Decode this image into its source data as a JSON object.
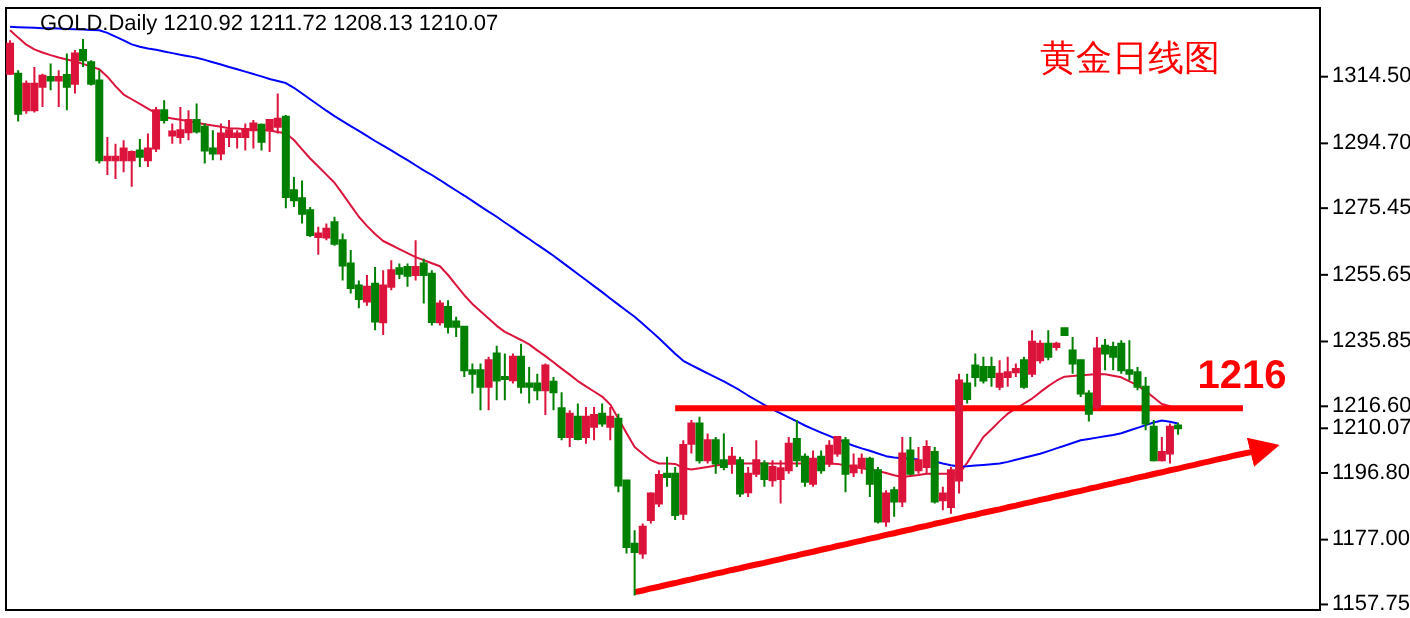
{
  "chart_data": {
    "type": "candlestick",
    "title": "GOLD.Daily 1210.92 1211.72 1208.13 1210.07",
    "subtitle": "黄金日线图",
    "categories": [
      null,
      null,
      null,
      null,
      null,
      null,
      null,
      null,
      null,
      null,
      null,
      null,
      null,
      null,
      null,
      null,
      null,
      null,
      null,
      null,
      null,
      null,
      null,
      null,
      null,
      null,
      null,
      null,
      null,
      null,
      null,
      null,
      null,
      null,
      null,
      null,
      null,
      null,
      null,
      null,
      null,
      null,
      null,
      null,
      null,
      null,
      null,
      null,
      null,
      null,
      null,
      null,
      null,
      null,
      null,
      null,
      null,
      null,
      null,
      null,
      null,
      null,
      null,
      null,
      null,
      null,
      null,
      null,
      null,
      null,
      null,
      null,
      null,
      null,
      null,
      null,
      null,
      null,
      null,
      null,
      null,
      null,
      null,
      null,
      null,
      null,
      null,
      null,
      null,
      null,
      null,
      null,
      null,
      null,
      null,
      null,
      null,
      null,
      null,
      null,
      null,
      null,
      null,
      null,
      null,
      null,
      null,
      null,
      null,
      null,
      null,
      null,
      null,
      null,
      null,
      null,
      null,
      null,
      null,
      null,
      null,
      null,
      null,
      null,
      null,
      null,
      null,
      null,
      null,
      null,
      null,
      null,
      null,
      null,
      null,
      null,
      null,
      null,
      null,
      null,
      null,
      null,
      null,
      null,
      null,
      null,
      null,
      null,
      null,
      null,
      null,
      null,
      null,
      null,
      null,
      null,
      null,
      null,
      null,
      null,
      null,
      null
    ],
    "ohlc": [
      [
        1315.4,
        1325.3,
        1315.0,
        1324.3
      ],
      [
        1315.4,
        1316.4,
        1301.2,
        1303.5
      ],
      [
        1304.5,
        1313.4,
        1303.5,
        1312.4
      ],
      [
        1304.5,
        1317.4,
        1303.9,
        1312.4
      ],
      [
        1311.5,
        1315.4,
        1305.5,
        1314.8
      ],
      [
        1314.4,
        1318.4,
        1310.5,
        1313.4
      ],
      [
        1313.4,
        1316.4,
        1305.5,
        1314.4
      ],
      [
        1315.0,
        1321.4,
        1304.5,
        1311.5
      ],
      [
        1312.4,
        1322.4,
        1309.5,
        1321.4
      ],
      [
        1322.4,
        1325.7,
        1317.4,
        1319.4
      ],
      [
        1318.8,
        1319.4,
        1311.9,
        1312.4
      ],
      [
        1313.4,
        1316.4,
        1288.7,
        1289.7
      ],
      [
        1289.7,
        1296.6,
        1285.3,
        1290.7
      ],
      [
        1289.7,
        1294.6,
        1284.1,
        1290.7
      ],
      [
        1289.7,
        1295.6,
        1286.1,
        1293.2
      ],
      [
        1289.7,
        1292.6,
        1281.8,
        1292.1
      ],
      [
        1292.6,
        1296.0,
        1287.7,
        1290.7
      ],
      [
        1289.7,
        1297.6,
        1287.7,
        1293.2
      ],
      [
        1293.2,
        1305.5,
        1292.1,
        1304.5
      ],
      [
        1304.5,
        1307.5,
        1300.6,
        1301.6
      ],
      [
        1297.0,
        1300.6,
        1294.6,
        1298.2
      ],
      [
        1296.6,
        1305.5,
        1294.6,
        1298.6
      ],
      [
        1298.0,
        1304.5,
        1295.6,
        1301.6
      ],
      [
        1301.6,
        1306.5,
        1297.6,
        1298.2
      ],
      [
        1299.6,
        1300.6,
        1288.7,
        1292.6
      ],
      [
        1293.2,
        1298.6,
        1289.7,
        1291.7
      ],
      [
        1291.7,
        1300.6,
        1289.7,
        1297.6
      ],
      [
        1296.6,
        1301.6,
        1293.6,
        1298.6
      ],
      [
        1296.6,
        1298.6,
        1293.2,
        1297.6
      ],
      [
        1296.6,
        1300.6,
        1292.6,
        1299.0
      ],
      [
        1298.6,
        1301.6,
        1293.2,
        1300.6
      ],
      [
        1300.2,
        1300.6,
        1292.6,
        1295.2
      ],
      [
        1298.6,
        1301.6,
        1292.1,
        1301.6
      ],
      [
        1299.6,
        1309.5,
        1297.6,
        1302.0
      ],
      [
        1302.6,
        1303.1,
        1275.4,
        1278.8
      ],
      [
        1280.8,
        1284.7,
        1275.8,
        1277.8
      ],
      [
        1278.4,
        1283.7,
        1270.9,
        1273.8
      ],
      [
        1274.8,
        1275.8,
        1266.9,
        1267.5
      ],
      [
        1266.9,
        1269.9,
        1261.6,
        1267.9
      ],
      [
        1266.7,
        1270.9,
        1265.9,
        1269.3
      ],
      [
        1271.3,
        1272.9,
        1264.3,
        1264.9
      ],
      [
        1265.9,
        1267.9,
        1254.0,
        1258.4
      ],
      [
        1259.0,
        1263.0,
        1250.1,
        1251.7
      ],
      [
        1252.5,
        1254.0,
        1245.7,
        1248.5
      ],
      [
        1247.7,
        1255.6,
        1246.5,
        1252.1
      ],
      [
        1253.0,
        1258.0,
        1239.2,
        1241.8
      ],
      [
        1241.6,
        1257.0,
        1237.8,
        1252.5
      ],
      [
        1252.1,
        1260.0,
        1251.1,
        1257.0
      ],
      [
        1257.6,
        1259.0,
        1254.4,
        1256.0
      ],
      [
        1258.0,
        1259.0,
        1252.1,
        1255.4
      ],
      [
        1255.6,
        1265.9,
        1254.0,
        1258.0
      ],
      [
        1259.0,
        1260.4,
        1247.1,
        1255.6
      ],
      [
        1256.0,
        1257.0,
        1240.6,
        1241.6
      ],
      [
        1241.6,
        1248.1,
        1240.6,
        1247.1
      ],
      [
        1246.1,
        1248.1,
        1238.2,
        1240.2
      ],
      [
        1241.8,
        1243.2,
        1237.2,
        1240.2
      ],
      [
        1240.2,
        1240.2,
        1225.3,
        1227.3
      ],
      [
        1227.3,
        1229.3,
        1220.4,
        1226.3
      ],
      [
        1227.3,
        1229.3,
        1215.4,
        1222.4
      ],
      [
        1222.4,
        1231.3,
        1215.4,
        1230.3
      ],
      [
        1232.3,
        1234.6,
        1218.4,
        1224.3
      ],
      [
        1225.3,
        1232.3,
        1218.4,
        1224.9
      ],
      [
        1224.3,
        1232.3,
        1223.4,
        1231.3
      ],
      [
        1231.3,
        1235.2,
        1220.4,
        1222.4
      ],
      [
        1223.4,
        1228.3,
        1217.4,
        1222.4
      ],
      [
        1223.4,
        1226.3,
        1218.4,
        1221.4
      ],
      [
        1221.4,
        1229.3,
        1214.0,
        1228.7
      ],
      [
        1223.9,
        1225.3,
        1215.4,
        1220.8
      ],
      [
        1216.0,
        1220.8,
        1206.5,
        1207.5
      ],
      [
        1207.5,
        1215.4,
        1204.5,
        1214.4
      ],
      [
        1213.5,
        1217.4,
        1206.5,
        1206.9
      ],
      [
        1207.5,
        1216.4,
        1205.5,
        1213.5
      ],
      [
        1210.5,
        1216.4,
        1206.5,
        1214.0
      ],
      [
        1214.4,
        1217.4,
        1210.5,
        1211.5
      ],
      [
        1210.5,
        1216.4,
        1206.5,
        1213.5
      ],
      [
        1212.9,
        1214.4,
        1191.1,
        1193.1
      ],
      [
        1194.6,
        1194.6,
        1172.9,
        1174.8
      ],
      [
        1175.8,
        1179.8,
        1160.4,
        1173.3
      ],
      [
        1172.9,
        1181.8,
        1171.3,
        1180.8
      ],
      [
        1182.8,
        1191.1,
        1181.8,
        1190.7
      ],
      [
        1187.7,
        1197.6,
        1186.7,
        1196.2
      ],
      [
        1196.6,
        1201.6,
        1192.7,
        1195.6
      ],
      [
        1196.6,
        1198.6,
        1182.8,
        1184.3
      ],
      [
        1184.7,
        1206.5,
        1182.8,
        1205.1
      ],
      [
        1205.5,
        1212.5,
        1202.6,
        1211.5
      ],
      [
        1211.5,
        1213.5,
        1199.6,
        1200.6
      ],
      [
        1200.6,
        1208.5,
        1199.6,
        1206.5
      ],
      [
        1206.5,
        1207.5,
        1196.6,
        1199.6
      ],
      [
        1200.6,
        1208.5,
        1197.6,
        1198.6
      ],
      [
        1199.6,
        1204.5,
        1196.6,
        1201.6
      ],
      [
        1200.6,
        1201.6,
        1189.7,
        1190.7
      ],
      [
        1191.1,
        1198.6,
        1189.7,
        1196.6
      ],
      [
        1196.6,
        1206.5,
        1195.6,
        1200.6
      ],
      [
        1199.6,
        1200.6,
        1192.7,
        1195.0
      ],
      [
        1194.6,
        1200.6,
        1192.7,
        1198.6
      ],
      [
        1195.0,
        1200.6,
        1187.7,
        1198.2
      ],
      [
        1197.6,
        1207.5,
        1196.6,
        1205.5
      ],
      [
        1206.9,
        1212.5,
        1198.6,
        1200.6
      ],
      [
        1201.6,
        1202.6,
        1192.7,
        1194.2
      ],
      [
        1193.6,
        1203.5,
        1192.7,
        1201.0
      ],
      [
        1201.6,
        1203.5,
        1196.6,
        1197.6
      ],
      [
        1199.6,
        1206.5,
        1198.6,
        1204.9
      ],
      [
        1202.6,
        1207.5,
        1201.6,
        1207.5
      ],
      [
        1206.5,
        1207.5,
        1191.1,
        1196.6
      ],
      [
        1197.0,
        1202.6,
        1195.6,
        1199.0
      ],
      [
        1198.6,
        1202.6,
        1196.6,
        1201.0
      ],
      [
        1201.0,
        1201.6,
        1189.7,
        1193.6
      ],
      [
        1197.6,
        1198.6,
        1181.8,
        1182.4
      ],
      [
        1182.4,
        1191.7,
        1180.8,
        1190.7
      ],
      [
        1191.7,
        1192.7,
        1183.8,
        1188.3
      ],
      [
        1188.3,
        1207.5,
        1186.7,
        1202.6
      ],
      [
        1203.5,
        1207.5,
        1196.2,
        1196.6
      ],
      [
        1197.6,
        1204.5,
        1196.6,
        1200.6
      ],
      [
        1198.6,
        1206.5,
        1196.6,
        1204.5
      ],
      [
        1203.0,
        1204.5,
        1187.7,
        1188.3
      ],
      [
        1188.7,
        1192.7,
        1185.7,
        1190.7
      ],
      [
        1186.7,
        1198.6,
        1184.7,
        1197.6
      ],
      [
        1194.6,
        1226.3,
        1190.7,
        1224.3
      ],
      [
        1223.4,
        1226.3,
        1217.4,
        1218.8
      ],
      [
        1228.7,
        1232.3,
        1222.4,
        1225.3
      ],
      [
        1228.3,
        1231.3,
        1223.4,
        1224.3
      ],
      [
        1228.3,
        1231.3,
        1222.4,
        1225.3
      ],
      [
        1222.4,
        1230.3,
        1221.4,
        1226.3
      ],
      [
        1225.3,
        1231.3,
        1222.4,
        1226.7
      ],
      [
        1226.7,
        1229.3,
        1225.3,
        1227.7
      ],
      [
        1230.3,
        1231.3,
        1221.8,
        1222.4
      ],
      [
        1226.3,
        1239.2,
        1225.3,
        1235.8
      ],
      [
        1230.3,
        1236.2,
        1229.3,
        1235.2
      ],
      [
        1235.2,
        1239.2,
        1230.3,
        1231.3
      ],
      [
        1234.2,
        1235.8,
        1233.2,
        1235.2
      ],
      [
        1239.8,
        1239.8,
        1237.8,
        1237.8
      ],
      [
        1233.2,
        1237.2,
        1226.3,
        1229.3
      ],
      [
        1230.3,
        1230.3,
        1219.4,
        1220.4
      ],
      [
        1220.4,
        1221.4,
        1212.1,
        1214.4
      ],
      [
        1216.4,
        1237.2,
        1215.4,
        1233.8
      ],
      [
        1234.6,
        1236.6,
        1227.3,
        1232.3
      ],
      [
        1234.2,
        1235.8,
        1227.3,
        1231.3
      ],
      [
        1235.2,
        1236.2,
        1226.3,
        1227.3
      ],
      [
        1227.3,
        1236.2,
        1224.3,
        1226.3
      ],
      [
        1226.7,
        1228.3,
        1221.4,
        1222.4
      ],
      [
        1222.4,
        1225.3,
        1209.5,
        1211.5
      ],
      [
        1210.5,
        1212.5,
        1200.2,
        1200.6
      ],
      [
        1200.6,
        1207.5,
        1200.2,
        1203.0
      ],
      [
        1202.6,
        1211.5,
        1199.6,
        1210.5
      ],
      [
        1210.92,
        1211.72,
        1208.13,
        1210.07
      ],
      null,
      null,
      null,
      null,
      null,
      null,
      null,
      null,
      null,
      null,
      null,
      null,
      null,
      null,
      null,
      null,
      null
    ],
    "series": [
      {
        "type": "line",
        "color": "#dc143c",
        "values": [
          1328.3,
          1326.1,
          1324.0,
          1322.6,
          1321.7,
          1320.9,
          1320.2,
          1319.6,
          1319.0,
          1318.3,
          1317.5,
          1316.7,
          1314.5,
          1311.7,
          1309.2,
          1307.8,
          1306.4,
          1305.0,
          1303.6,
          1302.5,
          1302.1,
          1301.7,
          1301.3,
          1300.8,
          1300.4,
          1300.0,
          1299.6,
          1299.2,
          1299.1,
          1298.9,
          1298.8,
          1298.7,
          1298.5,
          1298.1,
          1297.7,
          1295.7,
          1292.9,
          1290.2,
          1287.8,
          1285.4,
          1283.0,
          1279.7,
          1276.3,
          1272.9,
          1270.2,
          1267.8,
          1265.7,
          1264.5,
          1263.3,
          1262.1,
          1260.9,
          1260.0,
          1259.1,
          1258.2,
          1255.6,
          1252.6,
          1249.6,
          1247.0,
          1244.8,
          1242.7,
          1240.5,
          1238.7,
          1237.5,
          1236.3,
          1235.0,
          1233.2,
          1231.5,
          1229.7,
          1227.8,
          1226.0,
          1224.1,
          1222.5,
          1221.0,
          1219.5,
          1217.1,
          1212.9,
          1208.7,
          1204.5,
          1202.5,
          1200.6,
          1199.6,
          1199.6,
          1199.5,
          1198.3,
          1197.8,
          1198.2,
          1198.6,
          1199.0,
          1199.4,
          1199.6,
          1199.6,
          1199.6,
          1199.6,
          1199.6,
          1199.6,
          1199.6,
          1199.6,
          1199.6,
          1199.6,
          1199.6,
          1199.6,
          1199.6,
          1199.5,
          1199.0,
          1198.6,
          1198.2,
          1197.8,
          1197.4,
          1196.8,
          1196.1,
          1195.6,
          1195.9,
          1196.2,
          1196.6,
          1196.6,
          1196.6,
          1196.6,
          1196.6,
          1199.8,
          1203.7,
          1207.5,
          1209.8,
          1212.2,
          1214.4,
          1215.9,
          1217.4,
          1218.9,
          1220.8,
          1222.6,
          1224.2,
          1225.4,
          1225.6,
          1225.8,
          1226.0,
          1226.2,
          1226.1,
          1225.7,
          1225.2,
          1224.0,
          1222.8,
          1221.1,
          1219.2,
          1217.3,
          1216.6,
          1216.0,
          null,
          null,
          null,
          null,
          null,
          null,
          null,
          null,
          null,
          null,
          null,
          null,
          null,
          null,
          null,
          null,
          null
        ]
      },
      {
        "type": "line",
        "color": "#0000ff",
        "values": [
          1329.3,
          1329.2,
          1329.1,
          1329.0,
          1328.9,
          1328.9,
          1328.8,
          1328.7,
          1328.6,
          1328.5,
          1328.4,
          1328.3,
          1327.5,
          1326.4,
          1325.3,
          1324.1,
          1323.4,
          1322.9,
          1322.5,
          1322.0,
          1321.5,
          1321.0,
          1320.6,
          1320.1,
          1319.5,
          1318.8,
          1318.1,
          1317.4,
          1316.7,
          1316.0,
          1315.3,
          1314.6,
          1313.8,
          1313.2,
          1312.6,
          1311.2,
          1309.5,
          1307.8,
          1306.1,
          1304.4,
          1302.8,
          1301.3,
          1299.8,
          1298.4,
          1296.9,
          1295.4,
          1294.0,
          1292.6,
          1291.1,
          1289.7,
          1288.2,
          1286.7,
          1285.3,
          1283.8,
          1282.2,
          1280.7,
          1279.2,
          1277.6,
          1276.0,
          1274.4,
          1272.9,
          1271.2,
          1269.6,
          1267.9,
          1266.3,
          1264.6,
          1263.0,
          1261.3,
          1259.5,
          1257.7,
          1255.9,
          1254.1,
          1252.3,
          1250.5,
          1248.6,
          1246.8,
          1245.0,
          1243.2,
          1241.1,
          1239.0,
          1236.8,
          1234.5,
          1232.2,
          1230.1,
          1228.8,
          1227.6,
          1226.4,
          1225.2,
          1224.0,
          1222.7,
          1221.3,
          1219.8,
          1218.4,
          1217.0,
          1215.7,
          1214.5,
          1213.3,
          1212.1,
          1210.9,
          1209.8,
          1208.8,
          1207.8,
          1206.8,
          1205.8,
          1204.9,
          1204.1,
          1203.4,
          1202.6,
          1201.8,
          1201.4,
          1201.2,
          1201.0,
          1200.8,
          null,
          1200.2,
          1199.6,
          1199.1,
          1198.7,
          1198.8,
          1199.0,
          1199.2,
          1199.4,
          1199.6,
          1200.1,
          1200.7,
          1201.3,
          1201.9,
          1202.5,
          1203.3,
          1204.1,
          1204.9,
          1205.7,
          1206.5,
          1206.9,
          1207.3,
          1207.7,
          1208.1,
          1208.6,
          1209.4,
          1210.2,
          1211.0,
          1211.8,
          1212.4,
          1212.0,
          1211.5,
          null,
          null,
          null,
          null,
          null,
          null,
          null,
          null,
          null,
          null,
          null,
          null,
          null,
          null,
          null,
          null,
          null
        ]
      },
      {
        "type": "line",
        "color": "#ff0000",
        "values": [
          null,
          null,
          null,
          null,
          null,
          null,
          null,
          null,
          null,
          null,
          null,
          null,
          null,
          null,
          null,
          null,
          null,
          null,
          null,
          null,
          null,
          null,
          null,
          null,
          null,
          null,
          null,
          null,
          null,
          null,
          null,
          null,
          null,
          null,
          null,
          null,
          null,
          null,
          null,
          null,
          null,
          null,
          null,
          null,
          null,
          null,
          null,
          null,
          null,
          null,
          null,
          null,
          null,
          null,
          null,
          null,
          null,
          null,
          null,
          null,
          null,
          null,
          null,
          null,
          null,
          null,
          null,
          null,
          null,
          null,
          null,
          null,
          null,
          null,
          null,
          null,
          null,
          null,
          null,
          null,
          null,
          null,
          1216,
          1216,
          1216,
          1216,
          1216,
          1216,
          1216,
          1216,
          1216,
          1216,
          1216,
          1216,
          1216,
          1216,
          1216,
          1216,
          1216,
          1216,
          1216,
          1216,
          1216,
          1216,
          1216,
          1216,
          1216,
          1216,
          1216,
          1216,
          1216,
          1216,
          1216,
          1216,
          1216,
          1216,
          1216,
          1216,
          1216,
          1216,
          1216,
          1216,
          1216,
          1216,
          1216,
          1216,
          1216,
          1216,
          1216,
          1216,
          1216,
          1216,
          1216,
          1216,
          1216,
          1216,
          1216,
          1216,
          1216,
          1216,
          1216,
          1216,
          1216,
          1216,
          1216,
          1216,
          1216,
          1216,
          1216,
          1216,
          1216,
          1216,
          1216,
          null,
          null,
          null,
          null,
          null,
          null,
          null,
          null,
          null
        ]
      },
      {
        "type": "line",
        "color": "#ff0000",
        "values": [
          null,
          null,
          null,
          null,
          null,
          null,
          null,
          null,
          null,
          null,
          null,
          null,
          null,
          null,
          null,
          null,
          null,
          null,
          null,
          null,
          null,
          null,
          null,
          null,
          null,
          null,
          null,
          null,
          null,
          null,
          null,
          null,
          null,
          null,
          null,
          null,
          null,
          null,
          null,
          null,
          null,
          null,
          null,
          null,
          null,
          null,
          null,
          null,
          null,
          null,
          null,
          null,
          null,
          null,
          null,
          null,
          null,
          null,
          null,
          null,
          null,
          null,
          null,
          null,
          null,
          null,
          null,
          null,
          null,
          null,
          null,
          null,
          null,
          null,
          null,
          null,
          null,
          1161.4,
          1161.9,
          1162.5,
          1163.0,
          1163.6,
          1164.1,
          1164.7,
          1165.2,
          1165.8,
          1166.3,
          1166.9,
          1167.4,
          1168.0,
          1168.5,
          1169.1,
          1169.6,
          1170.1,
          1170.7,
          1171.2,
          1171.8,
          1172.3,
          1172.9,
          1173.4,
          1174.0,
          1174.5,
          1175.1,
          1175.6,
          1176.2,
          1176.7,
          1177.3,
          1177.8,
          1178.4,
          1178.9,
          1179.5,
          1180.0,
          1180.6,
          1181.1,
          1181.7,
          1182.2,
          1182.8,
          1183.3,
          1183.9,
          1184.4,
          1185.0,
          1185.5,
          1186.0,
          1186.6,
          1187.1,
          1187.7,
          1188.2,
          1188.8,
          1189.3,
          1189.9,
          1190.4,
          1191.0,
          1191.5,
          1192.1,
          1192.6,
          1193.2,
          1193.7,
          1194.3,
          1194.8,
          1195.4,
          1195.9,
          1196.5,
          1197.0,
          1197.6,
          1198.1,
          1198.7,
          1199.2,
          1199.8,
          1200.3,
          1200.9,
          1201.4,
          1202.0,
          1202.5,
          1203.0,
          1203.6,
          null,
          null,
          null,
          null,
          null,
          null,
          null
        ]
      }
    ],
    "annotations": [
      {
        "text": "1216",
        "y": 1216
      }
    ],
    "ylim": [
      1156.1,
      1334.9
    ],
    "yticks": [
      {
        "value": 1157.75,
        "label": "1157.75"
      },
      {
        "value": 1177,
        "label": "1177.00"
      },
      {
        "value": 1196.8,
        "label": "1196.80"
      },
      {
        "value": 1210.07,
        "label": "1210.07"
      },
      {
        "value": 1216.6,
        "label": "1216.60"
      },
      {
        "value": 1235.85,
        "label": "1235.85"
      },
      {
        "value": 1255.65,
        "label": "1255.65"
      },
      {
        "value": 1275.45,
        "label": "1275.45"
      },
      {
        "value": 1294.7,
        "label": "1294.70"
      },
      {
        "value": 1314.5,
        "label": "1314.50"
      }
    ],
    "tick_labels": "y"
  }
}
